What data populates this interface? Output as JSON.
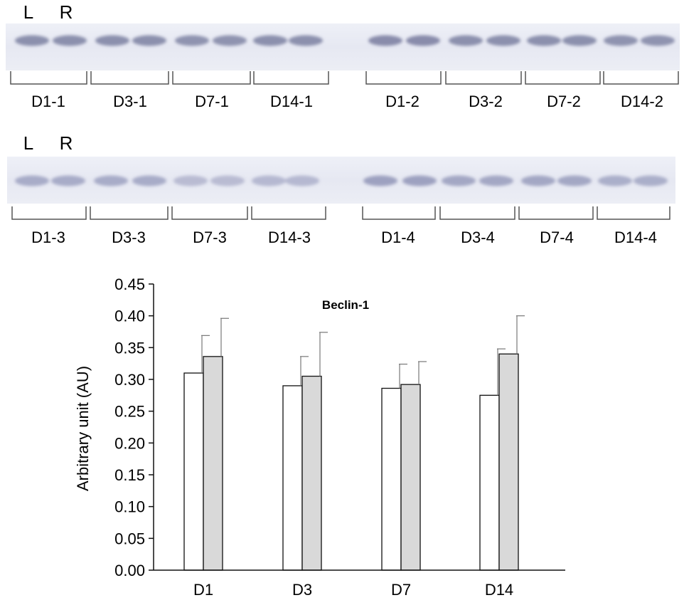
{
  "blot_panels": [
    {
      "lane_headers": [
        "L",
        "R"
      ],
      "group_labels": [
        "D1-1",
        "D3-1",
        "D7-1",
        "D14-1",
        "D1-2",
        "D3-2",
        "D7-2",
        "D14-2"
      ]
    },
    {
      "lane_headers": [
        "L",
        "R"
      ],
      "group_labels": [
        "D1-3",
        "D3-3",
        "D7-3",
        "D14-3",
        "D1-4",
        "D3-4",
        "D7-4",
        "D14-4"
      ]
    }
  ],
  "chart_data": {
    "type": "bar",
    "title": "Beclin-1",
    "xlabel": "",
    "ylabel": "Arbitrary unit (AU)",
    "categories": [
      "D1",
      "D3",
      "D7",
      "D14"
    ],
    "ylim": [
      0,
      0.45
    ],
    "yticks": [
      "0.00",
      "0.05",
      "0.10",
      "0.15",
      "0.20",
      "0.25",
      "0.30",
      "0.35",
      "0.40",
      "0.45"
    ],
    "grid": false,
    "series": [
      {
        "values": [
          0.31,
          0.29,
          0.286,
          0.275
        ],
        "errors": [
          0.059,
          0.046,
          0.038,
          0.073
        ],
        "color": "#ffffff"
      },
      {
        "values": [
          0.336,
          0.305,
          0.292,
          0.34
        ],
        "errors": [
          0.06,
          0.069,
          0.036,
          0.06
        ],
        "color": "#d9d9d9"
      }
    ]
  }
}
